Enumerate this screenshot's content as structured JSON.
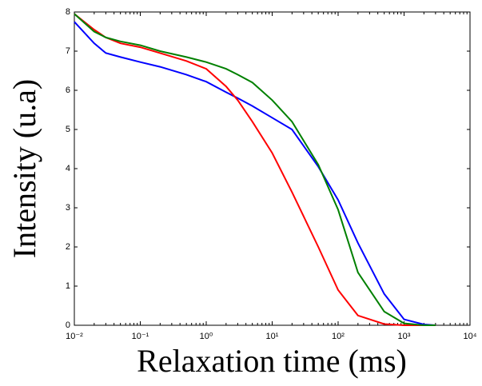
{
  "chart_data": {
    "type": "line",
    "xlabel": "Relaxation time (ms)",
    "ylabel": "Intensity (u.a)",
    "xscale": "log",
    "x": [
      0.01,
      0.02,
      0.03,
      0.05,
      0.1,
      0.2,
      0.5,
      1,
      2,
      3,
      5,
      10,
      20,
      50,
      100,
      200,
      500,
      1000,
      2000,
      3000
    ],
    "series": [
      {
        "color": "#0000ff",
        "values": [
          7.75,
          7.2,
          6.95,
          6.85,
          6.72,
          6.6,
          6.4,
          6.22,
          5.95,
          5.8,
          5.6,
          5.3,
          5.0,
          4.05,
          3.2,
          2.1,
          0.8,
          0.15,
          0.02,
          0
        ]
      },
      {
        "color": "#ff0000",
        "values": [
          7.95,
          7.55,
          7.35,
          7.2,
          7.1,
          6.95,
          6.75,
          6.55,
          6.1,
          5.75,
          5.2,
          4.4,
          3.4,
          2.0,
          0.9,
          0.25,
          0.03,
          0,
          0,
          0
        ]
      },
      {
        "color": "#008000",
        "values": [
          7.95,
          7.5,
          7.35,
          7.25,
          7.15,
          7.0,
          6.85,
          6.72,
          6.55,
          6.4,
          6.2,
          5.75,
          5.2,
          4.1,
          2.95,
          1.35,
          0.35,
          0.05,
          0,
          0
        ]
      }
    ],
    "xlim": [
      0.01,
      10000
    ],
    "xticks": [
      {
        "value": 0.01,
        "label": "10⁻²"
      },
      {
        "value": 0.1,
        "label": "10⁻¹"
      },
      {
        "value": 1,
        "label": "10⁰"
      },
      {
        "value": 10,
        "label": "10¹"
      },
      {
        "value": 100,
        "label": "10²"
      },
      {
        "value": 1000,
        "label": "10³"
      },
      {
        "value": 10000,
        "label": "10⁴"
      }
    ],
    "ylim": [
      0,
      8
    ],
    "yticks": [
      0,
      1,
      2,
      3,
      4,
      5,
      6,
      7,
      8
    ]
  }
}
